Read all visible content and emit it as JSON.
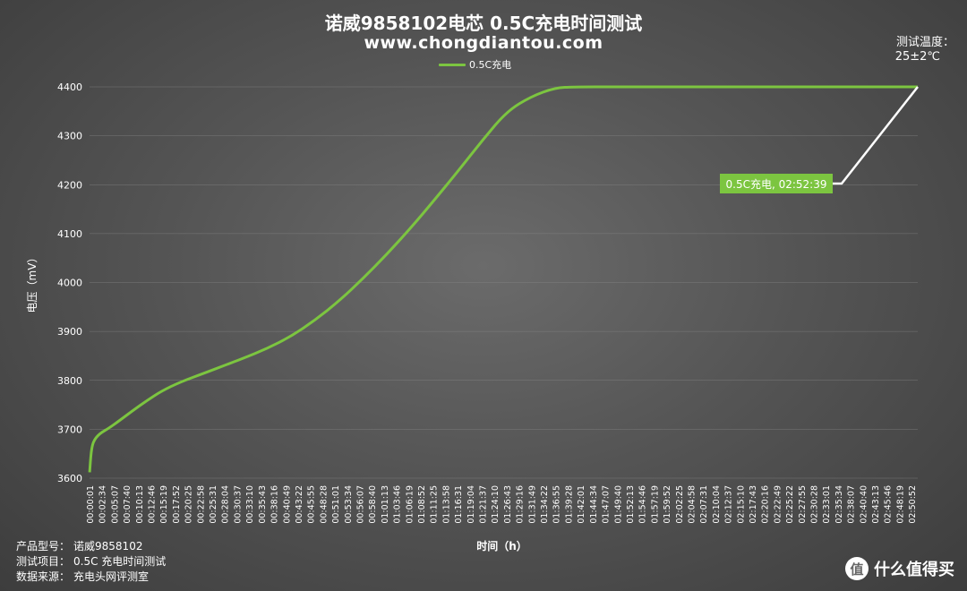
{
  "header": {
    "title": "诺威9858102电芯 0.5C充电时间测试",
    "site": "www.chongdiantou.com",
    "temp_label": "测试温度：",
    "temp_value": "25±2℃"
  },
  "footer": [
    {
      "label": "产品型号：",
      "value": "诺威9858102"
    },
    {
      "label": "测试项目：",
      "value": "0.5C 充电时间测试"
    },
    {
      "label": "数据来源：",
      "value": "充电头网评测室"
    }
  ],
  "watermark": {
    "logo": "值",
    "text": "什么值得买"
  },
  "colors": {
    "series": "#7cc540",
    "annotation": "#7cc540"
  },
  "chart_data": {
    "type": "line",
    "title": "诺威9858102电芯 0.5C充电时间测试",
    "xlabel": "时间（h）",
    "ylabel": "电压（mV）",
    "ylim": [
      3600,
      4400
    ],
    "yticks": [
      "3600",
      "3700",
      "3800",
      "3900",
      "4000",
      "4100",
      "4200",
      "4300",
      "4400"
    ],
    "grid": true,
    "legend_position": "top-center",
    "xticks": [
      "00:00:01",
      "00:02:34",
      "00:05:07",
      "00:07:40",
      "00:10:13",
      "00:12:46",
      "00:15:19",
      "00:17:52",
      "00:20:25",
      "00:22:58",
      "00:25:31",
      "00:28:04",
      "00:30:37",
      "00:33:10",
      "00:35:43",
      "00:38:16",
      "00:40:49",
      "00:43:22",
      "00:45:55",
      "00:48:28",
      "00:51:01",
      "00:53:34",
      "00:56:07",
      "00:58:40",
      "01:01:13",
      "01:03:46",
      "01:06:19",
      "01:08:52",
      "01:11:25",
      "01:13:58",
      "01:16:31",
      "01:19:04",
      "01:21:37",
      "01:24:10",
      "01:26:43",
      "01:29:16",
      "01:31:49",
      "01:34:22",
      "01:36:55",
      "01:39:28",
      "01:42:01",
      "01:44:34",
      "01:47:07",
      "01:49:40",
      "01:52:13",
      "01:54:46",
      "01:57:19",
      "01:59:52",
      "02:02:25",
      "02:04:58",
      "02:07:31",
      "02:10:04",
      "02:12:37",
      "02:15:10",
      "02:17:43",
      "02:20:16",
      "02:22:49",
      "02:25:22",
      "02:27:55",
      "02:30:28",
      "02:33:01",
      "02:35:34",
      "02:38:07",
      "02:40:40",
      "02:43:13",
      "02:45:46",
      "02:48:19",
      "02:50:52"
    ],
    "series": [
      {
        "name": "0.5C充电",
        "x_min": [
          0.02,
          0.3,
          0.6,
          1,
          1.7,
          2.6,
          4,
          6,
          9,
          12,
          15,
          19,
          24,
          28,
          32,
          37,
          42,
          47,
          52,
          57,
          62,
          67,
          72,
          77,
          82,
          87,
          92,
          97,
          101.1,
          110,
          130,
          150,
          172.65
        ],
        "y": [
          3612,
          3650,
          3668,
          3678,
          3687,
          3694,
          3702,
          3716,
          3738,
          3759,
          3778,
          3797,
          3815,
          3830,
          3845,
          3865,
          3890,
          3923,
          3962,
          4008,
          4058,
          4112,
          4170,
          4230,
          4292,
          4350,
          4380,
          4398,
          4400,
          4400,
          4400,
          4400,
          4400
        ]
      }
    ],
    "annotation": {
      "label": "0.5C充电, 02:52:39",
      "x_min": 172.65,
      "y": 4400
    }
  }
}
